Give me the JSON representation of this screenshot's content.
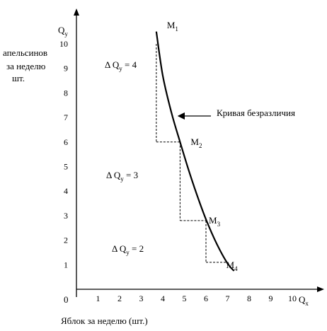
{
  "chart_data": {
    "type": "line",
    "xlabel": "Яблок за неделю (шт.)",
    "ylabel_lines": [
      "апельсинов",
      "за неделю",
      "шт."
    ],
    "x_axis_symbol": "Q",
    "x_axis_subscript": "x",
    "y_axis_symbol": "Q",
    "y_axis_subscript": "y",
    "origin_label": "0",
    "xlim": [
      0,
      11
    ],
    "ylim": [
      0,
      11
    ],
    "x_ticks": [
      1,
      2,
      3,
      4,
      5,
      6,
      7,
      8,
      9,
      10
    ],
    "y_ticks": [
      1,
      2,
      3,
      4,
      5,
      6,
      7,
      8,
      9,
      10
    ],
    "series": [
      {
        "name": "Кривая безразличия",
        "x": [
          3.7,
          4.0,
          4.4,
          4.8,
          5.2,
          5.6,
          6.0,
          6.5,
          7.0,
          7.3
        ],
        "y": [
          10.5,
          8.7,
          7.2,
          6.0,
          4.85,
          3.8,
          2.85,
          1.85,
          1.05,
          0.75
        ]
      }
    ],
    "points": [
      {
        "label": "M",
        "sub": "1",
        "x": 3.7,
        "y": 10.0
      },
      {
        "label": "M",
        "sub": "2",
        "x": 4.8,
        "y": 6.0
      },
      {
        "label": "M",
        "sub": "3",
        "x": 6.0,
        "y": 2.8
      },
      {
        "label": "M",
        "sub": "4",
        "x": 7.0,
        "y": 1.1
      }
    ],
    "steps": [
      {
        "x0": 3.7,
        "y0": 10.0,
        "x1": 4.8,
        "y1": 6.0
      },
      {
        "x0": 4.8,
        "y0": 6.0,
        "x1": 6.0,
        "y1": 2.8
      },
      {
        "x0": 6.0,
        "y0": 2.8,
        "x1": 7.0,
        "y1": 1.1
      }
    ],
    "delta_labels": [
      {
        "delta": "Δ",
        "symbol": "Q",
        "sub": "y",
        "value": " = 4"
      },
      {
        "delta": "Δ",
        "symbol": "Q",
        "sub": "y",
        "value": " = 3"
      },
      {
        "delta": "Δ",
        "symbol": "Q",
        "sub": "y",
        "value": " = 2"
      }
    ],
    "annotation": "Кривая безразличия"
  }
}
